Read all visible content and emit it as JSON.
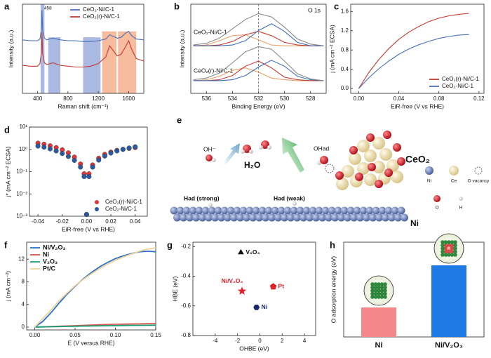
{
  "chart_data": [
    {
      "type": "line",
      "label": "a",
      "xlabel": "Raman shift (cm⁻¹)",
      "ylabel": "Intensity (a.u.)",
      "annotations": [
        "458"
      ],
      "x": [
        200,
        300,
        400,
        430,
        450,
        458,
        466,
        490,
        520,
        600,
        700,
        800,
        900,
        1000,
        1100,
        1200,
        1300,
        1350,
        1400,
        1450,
        1500,
        1560,
        1600,
        1640,
        1700,
        1800
      ],
      "xlim": [
        200,
        1800
      ],
      "ylim": [
        0,
        10.5
      ],
      "xticks": [
        400,
        800,
        1200,
        1600
      ],
      "legend": "upper right",
      "highlights": [
        {
          "x": [
            440,
            490
          ],
          "top": 10.5,
          "color": "#8ea2d8"
        },
        {
          "x": [
            540,
            700
          ],
          "top": 6.6,
          "color": "#8ea2d8"
        },
        {
          "x": [
            1000,
            1230
          ],
          "top": 6.6,
          "color": "#8ea2d8"
        },
        {
          "x": [
            1250,
            1440
          ],
          "top": 7.3,
          "color": "#f4a47c"
        },
        {
          "x": [
            1460,
            1700
          ],
          "top": 7.3,
          "color": "#f4a47c"
        }
      ],
      "series": [
        {
          "name": "CeO₂-Ni/C-1",
          "color": "#4a6fb5",
          "values": [
            6.3,
            6.2,
            6.2,
            6.4,
            7.5,
            9.8,
            7.4,
            6.5,
            6.3,
            6.5,
            6.3,
            6.2,
            6.2,
            6.1,
            6.1,
            6.2,
            6.4,
            6.9,
            6.7,
            6.5,
            6.6,
            7.1,
            7.3,
            6.8,
            6.4,
            6.3
          ]
        },
        {
          "name": "CeO₂(r)-Ni/C-1",
          "color": "#c23b32",
          "values": [
            3.3,
            3.2,
            3.2,
            3.5,
            4.8,
            7.2,
            4.7,
            3.6,
            3.4,
            3.6,
            3.3,
            3.2,
            3.1,
            3.1,
            3.2,
            3.5,
            4.3,
            5.6,
            5.0,
            4.4,
            4.6,
            5.5,
            6.2,
            5.2,
            4.1,
            3.8
          ]
        }
      ]
    },
    {
      "type": "line",
      "label": "b",
      "title": "O 1s",
      "xlabel": "Binding Energy (eV)",
      "ylabel": "Intensity (a.u.)",
      "stack_labels": [
        "CeO₂-Ni/C-1",
        "CeO₂(r)-Ni/C-1"
      ],
      "vline": 532,
      "x": [
        537,
        536,
        535,
        534,
        533,
        532,
        531,
        530,
        529,
        528,
        527
      ],
      "xlim": [
        537.2,
        526.8
      ],
      "ylim": [
        0,
        10.5
      ],
      "xticks": [
        536,
        534,
        532,
        530,
        528
      ],
      "series": [
        {
          "color": "#e8a06a",
          "values": [
            5.6,
            5.7,
            6.2,
            6.8,
            6.9,
            6.3,
            5.7,
            5.6,
            5.6,
            5.6,
            5.6
          ]
        },
        {
          "color": "#c23b32",
          "values": [
            5.6,
            5.6,
            5.7,
            6.1,
            6.9,
            7.3,
            6.8,
            6.0,
            5.7,
            5.6,
            5.6
          ]
        },
        {
          "color": "#3b6cb7",
          "values": [
            5.6,
            5.6,
            5.6,
            5.7,
            6.2,
            7.4,
            8.2,
            7.3,
            6.0,
            5.6,
            5.6
          ]
        },
        {
          "color": "#888888",
          "values": [
            5.7,
            5.9,
            6.5,
            7.6,
            8.7,
            9.4,
            9.0,
            7.8,
            6.4,
            5.8,
            5.6
          ]
        },
        {
          "color": "#e8a06a",
          "values": [
            1.5,
            1.6,
            2.0,
            2.7,
            3.0,
            2.5,
            1.8,
            1.6,
            1.5,
            1.5,
            1.5
          ]
        },
        {
          "color": "#c23b32",
          "values": [
            1.5,
            1.5,
            1.6,
            2.1,
            3.2,
            3.8,
            3.0,
            1.9,
            1.6,
            1.5,
            1.5
          ]
        },
        {
          "color": "#3b6cb7",
          "values": [
            1.5,
            1.5,
            1.5,
            1.6,
            2.1,
            3.1,
            3.9,
            3.2,
            2.0,
            1.6,
            1.5
          ]
        },
        {
          "color": "#888888",
          "values": [
            1.6,
            1.8,
            2.4,
            3.6,
            4.9,
            5.5,
            5.2,
            3.8,
            2.3,
            1.7,
            1.5
          ]
        }
      ]
    },
    {
      "type": "line",
      "label": "c",
      "xlabel": "EiR-free (V vs RHE)",
      "ylabel": "j (mA cm⁻² ECSA)",
      "x": [
        0,
        0.01,
        0.02,
        0.03,
        0.04,
        0.05,
        0.06,
        0.07,
        0.08,
        0.09,
        0.1,
        0.11
      ],
      "xlim": [
        -0.008,
        0.125
      ],
      "ylim": [
        -0.1,
        1.75
      ],
      "xticks": [
        {
          "value": 0,
          "label": "0.00"
        },
        0.04,
        0.08,
        0.12
      ],
      "yticks": [
        {
          "value": 0,
          "label": "0.0"
        },
        0.4,
        0.8,
        1.2,
        1.6
      ],
      "legend": "lower right",
      "series": [
        {
          "name": "CeO₂(r)-Ni/C-1",
          "color": "#c23b32",
          "values": [
            0,
            0.33,
            0.6,
            0.83,
            1.02,
            1.17,
            1.29,
            1.39,
            1.46,
            1.51,
            1.54,
            1.56
          ]
        },
        {
          "name": "CeO₂-Ni/C-1",
          "color": "#4a6fb5",
          "values": [
            0,
            0.22,
            0.41,
            0.57,
            0.71,
            0.82,
            0.91,
            0.98,
            1.04,
            1.08,
            1.11,
            1.12
          ]
        }
      ]
    },
    {
      "type": "line",
      "label": "d",
      "markers": true,
      "yscale": "log",
      "xlabel": "EiR-free (V vs RHE)",
      "ylabel": "j* (mA cm⁻² ECSA)",
      "x": [
        -0.04,
        -0.035,
        -0.03,
        -0.025,
        -0.02,
        -0.015,
        -0.01,
        -0.005,
        -0.002,
        0,
        0.002,
        0.005,
        0.01,
        0.015,
        0.02,
        0.025,
        0.03,
        0.035,
        0.04
      ],
      "xlim": [
        -0.047,
        0.05
      ],
      "ylim": [
        0.001,
        10
      ],
      "xticks": [
        -0.04,
        -0.02,
        {
          "value": 0,
          "label": "0.00"
        },
        0.02,
        0.04
      ],
      "yticks": [
        {
          "value": 0.001,
          "label": "10⁻³"
        },
        {
          "value": 0.01,
          "label": "10⁻²"
        },
        {
          "value": 0.1,
          "label": "10⁻¹"
        },
        {
          "value": 1,
          "label": "10⁰"
        },
        {
          "value": 10,
          "label": "10¹"
        }
      ],
      "legend": "lower right",
      "series": [
        {
          "name": "CeO₂(r)-Ni/C-1",
          "color": "#e0363a",
          "values": [
            1.9,
            1.7,
            1.45,
            1.2,
            0.95,
            0.7,
            0.45,
            0.22,
            0.08,
            0.0012,
            0.08,
            0.2,
            0.4,
            0.6,
            0.75,
            0.9,
            1.0,
            1.1,
            1.2
          ]
        },
        {
          "name": "CeO₂-Ni/C-1",
          "color": "#2c5aa0",
          "values": [
            1.4,
            1.25,
            1.05,
            0.85,
            0.65,
            0.48,
            0.32,
            0.16,
            0.06,
            0.0012,
            0.06,
            0.16,
            0.33,
            0.5,
            0.68,
            0.85,
            1.0,
            1.15,
            1.3
          ]
        }
      ]
    },
    {
      "type": "line",
      "label": "f",
      "xlabel": "E (V versus RHE)",
      "ylabel": "j (mA cm⁻²)",
      "x": [
        0,
        0.01,
        0.02,
        0.03,
        0.04,
        0.05,
        0.06,
        0.07,
        0.08,
        0.09,
        0.1,
        0.11,
        0.12,
        0.13,
        0.14,
        0.15
      ],
      "xlim": [
        -0.01,
        0.15
      ],
      "ylim": [
        -0.5,
        15
      ],
      "xticks": [
        {
          "value": 0,
          "label": "0.00"
        },
        0.05,
        {
          "value": 0.1,
          "label": "0.10"
        },
        0.15
      ],
      "yticks": [
        0,
        4,
        8,
        12
      ],
      "legend": "upper left",
      "series": [
        {
          "name": "Ni/V₂O₃",
          "color": "#2a6fc9",
          "values": [
            0,
            1.0,
            2.5,
            4.2,
            5.8,
            7.2,
            8.5,
            9.6,
            10.6,
            11.4,
            12.1,
            12.6,
            13.0,
            13.3,
            13.4,
            13.3
          ]
        },
        {
          "name": "Ni",
          "color": "#d9534f",
          "values": [
            0,
            0.05,
            0.1,
            0.15,
            0.2,
            0.25,
            0.3,
            0.35,
            0.4,
            0.45,
            0.5,
            0.52,
            0.55,
            0.57,
            0.6,
            0.62
          ]
        },
        {
          "name": "V₂O₃",
          "color": "#1a9e77",
          "values": [
            0,
            0.03,
            0.06,
            0.09,
            0.12,
            0.15,
            0.18,
            0.2,
            0.22,
            0.24,
            0.26,
            0.28,
            0.3,
            0.31,
            0.32,
            0.33
          ]
        },
        {
          "name": "Pt/C",
          "color": "#ecd39a",
          "values": [
            0,
            1.5,
            3.0,
            4.6,
            6.0,
            7.3,
            8.4,
            9.4,
            10.3,
            11.1,
            11.8,
            12.4,
            12.9,
            13.4,
            13.8,
            14.0
          ]
        }
      ]
    },
    {
      "type": "scatter",
      "label": "g",
      "xlabel": "OHBE (eV)",
      "ylabel": "HBE (eV)",
      "xlim": [
        -6,
        5
      ],
      "ylim": [
        -0.8,
        -0.17
      ],
      "xticks": [
        -4,
        -2,
        0,
        2,
        4
      ],
      "yticks": [
        -0.2,
        -0.4,
        -0.6,
        -0.8
      ],
      "series": [
        {
          "name": "V₂O₃",
          "color": "#111111",
          "marker": "triangle",
          "x": [
            -1.7
          ],
          "values": [
            -0.24
          ]
        },
        {
          "name": "Ni/V₂O₃",
          "color": "#e0202a",
          "marker": "star",
          "x": [
            -1.6
          ],
          "values": [
            -0.5
          ]
        },
        {
          "name": "Pt",
          "color": "#e0202a",
          "marker": "pentagon",
          "x": [
            1.2
          ],
          "values": [
            -0.47
          ]
        },
        {
          "name": "Ni",
          "color": "#1a2a6c",
          "marker": "hexagon",
          "x": [
            -0.3
          ],
          "values": [
            -0.61
          ]
        }
      ]
    },
    {
      "type": "bar",
      "label": "h",
      "ylabel": "O adsorption energy (eV)",
      "categories": [
        "Ni",
        "Ni/V₂O₃"
      ],
      "values": [
        0.14,
        0.34
      ],
      "colors": [
        "#f4878a",
        "#1e7be6"
      ],
      "ylim": [
        0,
        0.45
      ]
    }
  ],
  "diagram": {
    "label": "e",
    "oh": "OH⁻",
    "h2o": "H₂O",
    "ohad": "OHad",
    "ceo2": "CeO₂",
    "had_strong": "Had (strong)",
    "had_weak": "Had (weak)",
    "ni": "Ni",
    "legend": [
      "Ni",
      "Ce",
      "O vacancy",
      "O",
      "H"
    ]
  }
}
